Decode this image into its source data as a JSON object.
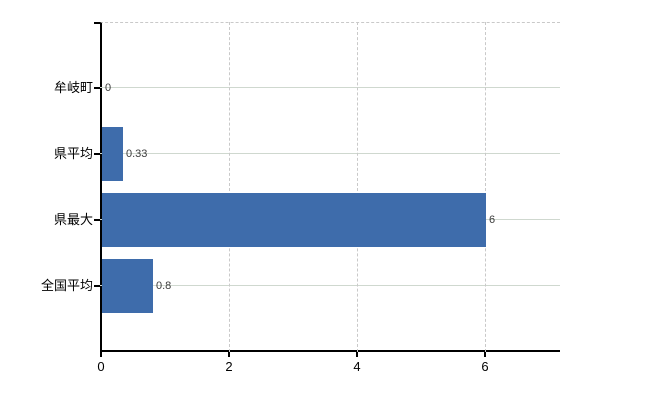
{
  "chart_data": {
    "type": "bar",
    "orientation": "horizontal",
    "title": "",
    "categories": [
      "牟岐町",
      "県平均",
      "県最大",
      "全国平均"
    ],
    "values": [
      0,
      0.33,
      6,
      0.8
    ],
    "data_labels": [
      "0",
      "0.33",
      "6",
      "0.8"
    ],
    "x_ticks": [
      "0",
      "2",
      "4",
      "6"
    ],
    "x_tick_values": [
      0,
      2,
      4,
      6
    ],
    "xlim": [
      0,
      7.1875
    ],
    "ylabel": "",
    "xlabel": "",
    "grid": true,
    "legend": false
  },
  "colors": {
    "bar": "#3e6cab",
    "axis": "#000000",
    "h_grid": "#cfd8cf",
    "v_grid": "#c9c9c9",
    "data_label": "#3c3c3c",
    "text": "#000000",
    "background": "#ffffff"
  }
}
